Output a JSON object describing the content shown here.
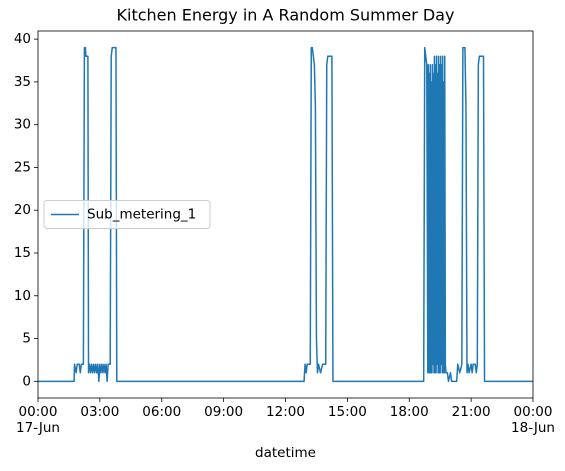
{
  "chart_data": {
    "type": "line",
    "title": "Kitchen Energy in A Random Summer Day",
    "xlabel": "datetime",
    "xlim": [
      0,
      24
    ],
    "xticks": [
      {
        "value": 0,
        "label": "00:00"
      },
      {
        "value": 3,
        "label": "03:00"
      },
      {
        "value": 6,
        "label": "06:00"
      },
      {
        "value": 9,
        "label": "09:00"
      },
      {
        "value": 12,
        "label": "12:00"
      },
      {
        "value": 15,
        "label": "15:00"
      },
      {
        "value": 18,
        "label": "18:00"
      },
      {
        "value": 21,
        "label": "21:00"
      },
      {
        "value": 24,
        "label": "00:00"
      }
    ],
    "date_labels": [
      {
        "value": 0,
        "label": "17-Jun"
      },
      {
        "value": 24,
        "label": "18-Jun"
      }
    ],
    "ylim": [
      -1.95,
      40.95
    ],
    "yticks": [
      0,
      5,
      10,
      15,
      20,
      25,
      30,
      35,
      40
    ],
    "grid": false,
    "legend": "center left",
    "x": [
      0,
      1.75,
      1.77,
      1.85,
      1.9,
      2.0,
      2.05,
      2.1,
      2.2,
      2.25,
      2.3,
      2.32,
      2.42,
      2.45,
      2.5,
      2.55,
      2.6,
      2.65,
      2.7,
      2.75,
      2.8,
      2.85,
      2.9,
      2.95,
      3.0,
      3.05,
      3.1,
      3.15,
      3.2,
      3.25,
      3.3,
      3.35,
      3.4,
      3.5,
      3.55,
      3.6,
      3.78,
      3.82,
      12.9,
      12.95,
      13.0,
      13.05,
      13.2,
      13.25,
      13.3,
      13.35,
      13.4,
      13.45,
      13.5,
      13.55,
      13.6,
      13.7,
      13.8,
      13.95,
      14.0,
      14.05,
      14.25,
      14.3,
      18.7,
      18.75,
      18.8,
      18.85,
      18.9,
      18.92,
      18.95,
      18.97,
      19.0,
      19.02,
      19.05,
      19.07,
      19.1,
      19.12,
      19.15,
      19.17,
      19.2,
      19.22,
      19.25,
      19.27,
      19.3,
      19.32,
      19.35,
      19.37,
      19.4,
      19.42,
      19.45,
      19.47,
      19.5,
      19.52,
      19.55,
      19.57,
      19.6,
      19.62,
      19.65,
      19.67,
      19.7,
      19.72,
      19.75,
      19.78,
      19.85,
      19.9,
      20.0,
      20.05,
      20.3,
      20.35,
      20.45,
      20.55,
      20.6,
      20.7,
      20.75,
      20.8,
      20.85,
      20.9,
      21.0,
      21.05,
      21.1,
      21.2,
      21.25,
      21.3,
      21.35,
      21.4,
      21.6,
      21.65,
      24
    ],
    "series": [
      {
        "name": "Sub_metering_1",
        "color": "#1f77b4",
        "values": [
          0,
          0,
          2,
          1,
          2,
          2,
          1,
          2,
          2,
          39,
          39,
          38,
          38,
          1,
          2,
          1,
          2,
          1,
          2,
          1,
          2,
          1,
          2,
          0,
          2,
          1,
          2,
          1,
          2,
          1,
          2,
          0,
          2,
          2,
          38,
          39,
          39,
          0,
          0,
          2,
          1,
          2,
          2,
          39,
          39,
          38,
          37,
          32,
          5,
          1,
          2,
          1,
          2,
          2,
          37,
          38,
          38,
          0,
          0,
          39,
          38,
          37,
          1,
          37,
          1,
          36,
          1,
          37,
          1,
          35,
          1,
          37,
          2,
          36,
          1,
          38,
          1,
          37,
          1,
          38,
          2,
          36,
          1,
          38,
          1,
          37,
          1,
          38,
          2,
          37,
          1,
          38,
          1,
          35,
          1,
          38,
          2,
          1,
          1,
          0,
          1,
          0,
          0,
          2,
          1,
          2,
          39,
          39,
          32,
          1,
          2,
          1,
          2,
          1,
          2,
          2,
          1,
          2,
          37,
          38,
          38,
          0,
          0
        ]
      }
    ]
  }
}
